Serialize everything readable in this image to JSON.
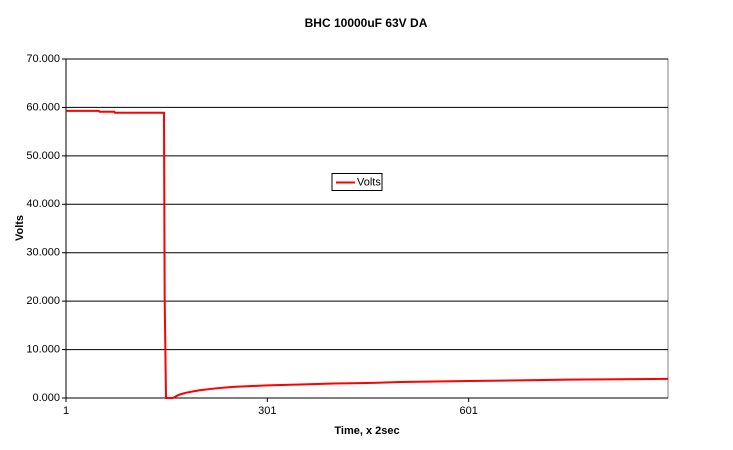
{
  "chart_data": {
    "type": "line",
    "title": "BHC 10000uF 63V DA",
    "x_label": "Time, x 2sec",
    "y_label": "Volts",
    "x": [
      1,
      50,
      51,
      73,
      74,
      147,
      148,
      150,
      160,
      170,
      180,
      200,
      225,
      250,
      301,
      350,
      400,
      450,
      500,
      550,
      601,
      650,
      700,
      750,
      800,
      850,
      898
    ],
    "series": [
      {
        "name": "Volts",
        "color": "#ff0000",
        "values": [
          59.3,
          59.3,
          59.1,
          59.1,
          58.9,
          58.9,
          21.0,
          0.0,
          0.0,
          0.7,
          1.1,
          1.6,
          2.0,
          2.3,
          2.6,
          2.8,
          3.0,
          3.1,
          3.3,
          3.4,
          3.5,
          3.6,
          3.7,
          3.8,
          3.85,
          3.9,
          3.95
        ]
      }
    ],
    "xlim": [
      1,
      898
    ],
    "xticks": [
      1,
      301,
      601
    ],
    "ylim": [
      0,
      70
    ],
    "yticks": [
      {
        "value": 0,
        "label": "0.000"
      },
      {
        "value": 10,
        "label": "10.000"
      },
      {
        "value": 20,
        "label": "20.000"
      },
      {
        "value": 30,
        "label": "30.000"
      },
      {
        "value": 40,
        "label": "40.000"
      },
      {
        "value": 50,
        "label": "50.000"
      },
      {
        "value": 60,
        "label": "60.000"
      },
      {
        "value": 70,
        "label": "70.000"
      }
    ],
    "grid": true,
    "legend": "center"
  }
}
